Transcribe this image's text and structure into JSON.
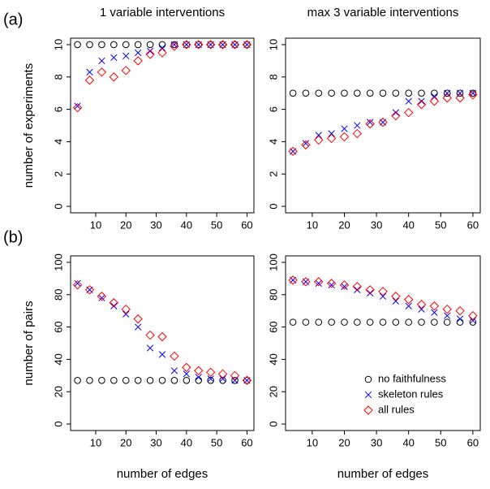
{
  "chart_data": [
    {
      "type": "scatter",
      "panel_label": "(a)",
      "title": "1 variable interventions",
      "ylabel": "number of experiments",
      "x": [
        4,
        8,
        12,
        16,
        20,
        24,
        28,
        32,
        36,
        40,
        44,
        48,
        52,
        56,
        60
      ],
      "xlim": [
        1.7,
        62.3
      ],
      "xticks": [
        10,
        20,
        30,
        40,
        50,
        60
      ],
      "ylim": [
        -0.4,
        10.4
      ],
      "yticks": [
        0,
        2,
        4,
        6,
        8,
        10
      ],
      "series": [
        {
          "name": "no faithfulness",
          "color": "#000000",
          "marker": "circle",
          "values": [
            10,
            10,
            10,
            10,
            10,
            10,
            10,
            10,
            10,
            10,
            10,
            10,
            10,
            10,
            10
          ]
        },
        {
          "name": "skeleton rules",
          "color": "#0000ff",
          "marker": "x",
          "values": [
            6.2,
            8.3,
            9.0,
            9.2,
            9.3,
            9.5,
            9.6,
            9.8,
            10,
            10,
            10,
            10,
            10,
            10,
            10
          ]
        },
        {
          "name": "all rules",
          "color": "#ff0000",
          "marker": "diamond",
          "values": [
            6.1,
            7.8,
            8.3,
            8.0,
            8.4,
            9.0,
            9.4,
            9.5,
            9.9,
            10,
            10,
            10,
            10,
            10,
            10
          ]
        }
      ]
    },
    {
      "type": "scatter",
      "title": "max 3 variable interventions",
      "x": [
        4,
        8,
        12,
        16,
        20,
        24,
        28,
        32,
        36,
        40,
        44,
        48,
        52,
        56,
        60
      ],
      "xlim": [
        1.7,
        62.3
      ],
      "xticks": [
        10,
        20,
        30,
        40,
        50,
        60
      ],
      "ylim": [
        -0.4,
        10.4
      ],
      "yticks": [
        0,
        2,
        4,
        6,
        8,
        10
      ],
      "series": [
        {
          "name": "no faithfulness",
          "color": "#000000",
          "marker": "circle",
          "values": [
            7,
            7,
            7,
            7,
            7,
            7,
            7,
            7,
            7,
            7,
            7,
            7,
            7,
            7,
            7
          ]
        },
        {
          "name": "skeleton rules",
          "color": "#0000ff",
          "marker": "x",
          "values": [
            3.4,
            3.9,
            4.4,
            4.5,
            4.8,
            5.0,
            5.2,
            5.2,
            5.8,
            6.5,
            6.5,
            6.8,
            7.0,
            7.0,
            7.0
          ]
        },
        {
          "name": "all rules",
          "color": "#ff0000",
          "marker": "diamond",
          "values": [
            3.4,
            3.8,
            4.1,
            4.2,
            4.3,
            4.5,
            5.1,
            5.2,
            5.6,
            5.8,
            6.3,
            6.5,
            6.7,
            6.7,
            6.9
          ]
        }
      ]
    },
    {
      "type": "scatter",
      "panel_label": "(b)",
      "ylabel": "number of pairs",
      "xlabel": "number of edges",
      "x": [
        4,
        8,
        12,
        16,
        20,
        24,
        28,
        32,
        36,
        40,
        44,
        48,
        52,
        56,
        60
      ],
      "xlim": [
        1.7,
        62.3
      ],
      "xticks": [
        10,
        20,
        30,
        40,
        50,
        60
      ],
      "ylim": [
        -4,
        104
      ],
      "yticks": [
        0,
        20,
        40,
        60,
        80,
        100
      ],
      "series": [
        {
          "name": "no faithfulness",
          "color": "#000000",
          "marker": "circle",
          "values": [
            27,
            27,
            27,
            27,
            27,
            27,
            27,
            27,
            27,
            27,
            27,
            27,
            27,
            27,
            27
          ]
        },
        {
          "name": "skeleton rules",
          "color": "#0000ff",
          "marker": "x",
          "values": [
            87,
            83,
            78,
            73,
            68,
            60,
            47,
            43,
            33,
            31,
            29,
            28,
            28,
            27,
            27
          ]
        },
        {
          "name": "all rules",
          "color": "#ff0000",
          "marker": "diamond",
          "values": [
            86,
            83,
            79,
            75,
            71,
            65,
            55,
            54,
            42,
            35,
            33,
            32,
            31,
            30,
            27
          ]
        }
      ]
    },
    {
      "type": "scatter",
      "xlabel": "number of edges",
      "legend": "bottomright",
      "x": [
        4,
        8,
        12,
        16,
        20,
        24,
        28,
        32,
        36,
        40,
        44,
        48,
        52,
        56,
        60
      ],
      "xlim": [
        1.7,
        62.3
      ],
      "xticks": [
        10,
        20,
        30,
        40,
        50,
        60
      ],
      "ylim": [
        -4,
        104
      ],
      "yticks": [
        0,
        20,
        40,
        60,
        80,
        100
      ],
      "series": [
        {
          "name": "no faithfulness",
          "color": "#000000",
          "marker": "circle",
          "values": [
            63,
            63,
            63,
            63,
            63,
            63,
            63,
            63,
            63,
            63,
            63,
            63,
            63,
            63,
            63
          ]
        },
        {
          "name": "skeleton rules",
          "color": "#0000ff",
          "marker": "x",
          "values": [
            89,
            88,
            87,
            86,
            85,
            83,
            81,
            79,
            76,
            73,
            71,
            69,
            67,
            65,
            64
          ]
        },
        {
          "name": "all rules",
          "color": "#ff0000",
          "marker": "diamond",
          "values": [
            89,
            88,
            88,
            87,
            86,
            85,
            83,
            82,
            79,
            77,
            74,
            73,
            71,
            70,
            67
          ]
        }
      ]
    }
  ]
}
